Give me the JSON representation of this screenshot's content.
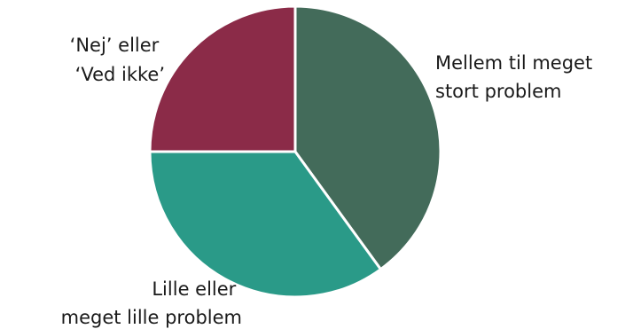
{
  "chart_data": {
    "type": "pie",
    "title": "",
    "slices": [
      {
        "label_lines": [
          "Mellem til meget",
          "stort problem"
        ],
        "value": 40,
        "color": "#436B5A"
      },
      {
        "label_lines": [
          "Lille eller",
          "meget lille problem"
        ],
        "value": 35,
        "color": "#2A9A88"
      },
      {
        "label_lines": [
          "‘Nej’ eller",
          "‘Ved ikke’"
        ],
        "value": 25,
        "color": "#8B2B48"
      }
    ]
  }
}
